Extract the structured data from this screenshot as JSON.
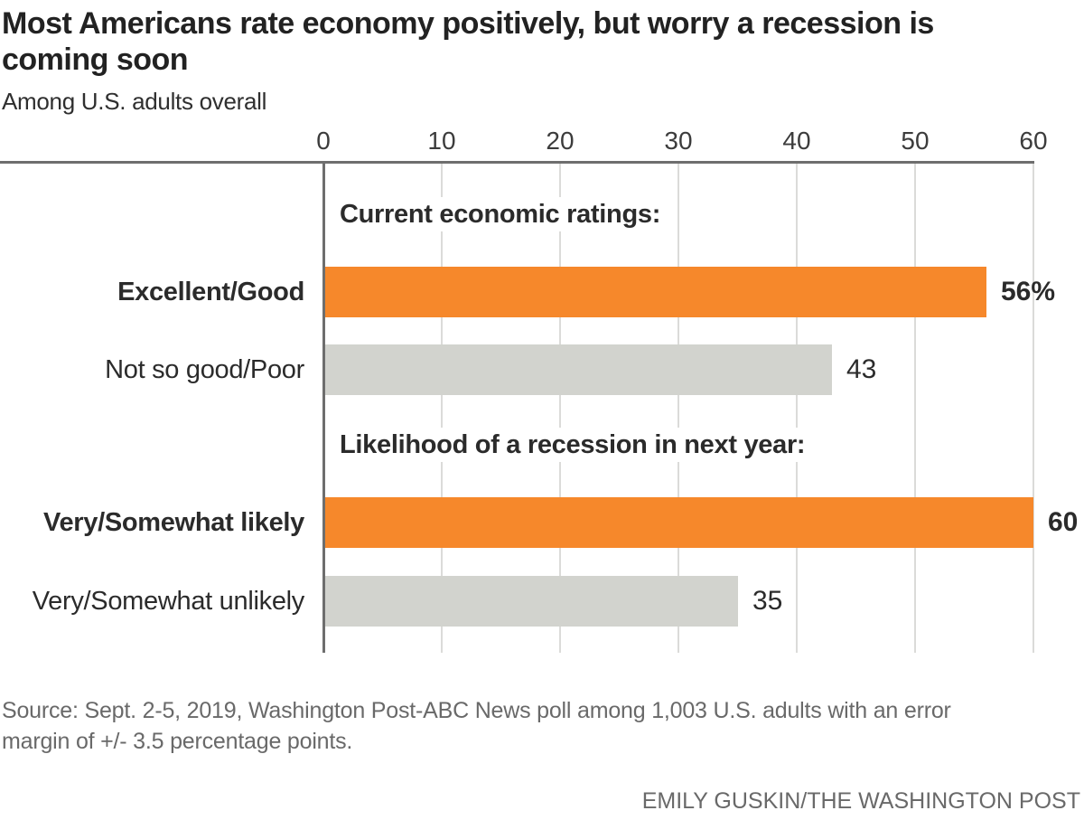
{
  "header": {
    "title_line1": "Most Americans rate economy positively, but worry a recession is",
    "title_line2": "coming soon",
    "subtitle": "Among U.S. adults overall"
  },
  "chart_data": {
    "type": "bar",
    "orientation": "horizontal",
    "title": "Most Americans rate economy positively, but worry a recession is coming soon",
    "subtitle": "Among U.S. adults overall",
    "xlim": [
      0,
      60
    ],
    "x_ticks": [
      0,
      10,
      20,
      30,
      40,
      50,
      60
    ],
    "grid": true,
    "legend": "none",
    "colors": {
      "highlight": "#f6882b",
      "muted": "#d2d3ce"
    },
    "groups": [
      {
        "header": "Current economic ratings:",
        "rows": [
          {
            "label": "Excellent/Good",
            "value": 56,
            "value_label": "56%",
            "style": "highlight",
            "emphasis": true
          },
          {
            "label": "Not so good/Poor",
            "value": 43,
            "value_label": "43",
            "style": "muted",
            "emphasis": false
          }
        ]
      },
      {
        "header": "Likelihood of a recession in next year:",
        "rows": [
          {
            "label": "Very/Somewhat likely",
            "value": 60,
            "value_label": "60",
            "style": "highlight",
            "emphasis": true
          },
          {
            "label": "Very/Somewhat unlikely",
            "value": 35,
            "value_label": "35",
            "style": "muted",
            "emphasis": false
          }
        ]
      }
    ]
  },
  "footer": {
    "source_line1": "Source: Sept. 2-5, 2019, Washington Post-ABC News poll among 1,003 U.S. adults with an error",
    "source_line2": "margin of +/- 3.5 percentage points.",
    "credit": "EMILY GUSKIN/THE WASHINGTON POST"
  }
}
